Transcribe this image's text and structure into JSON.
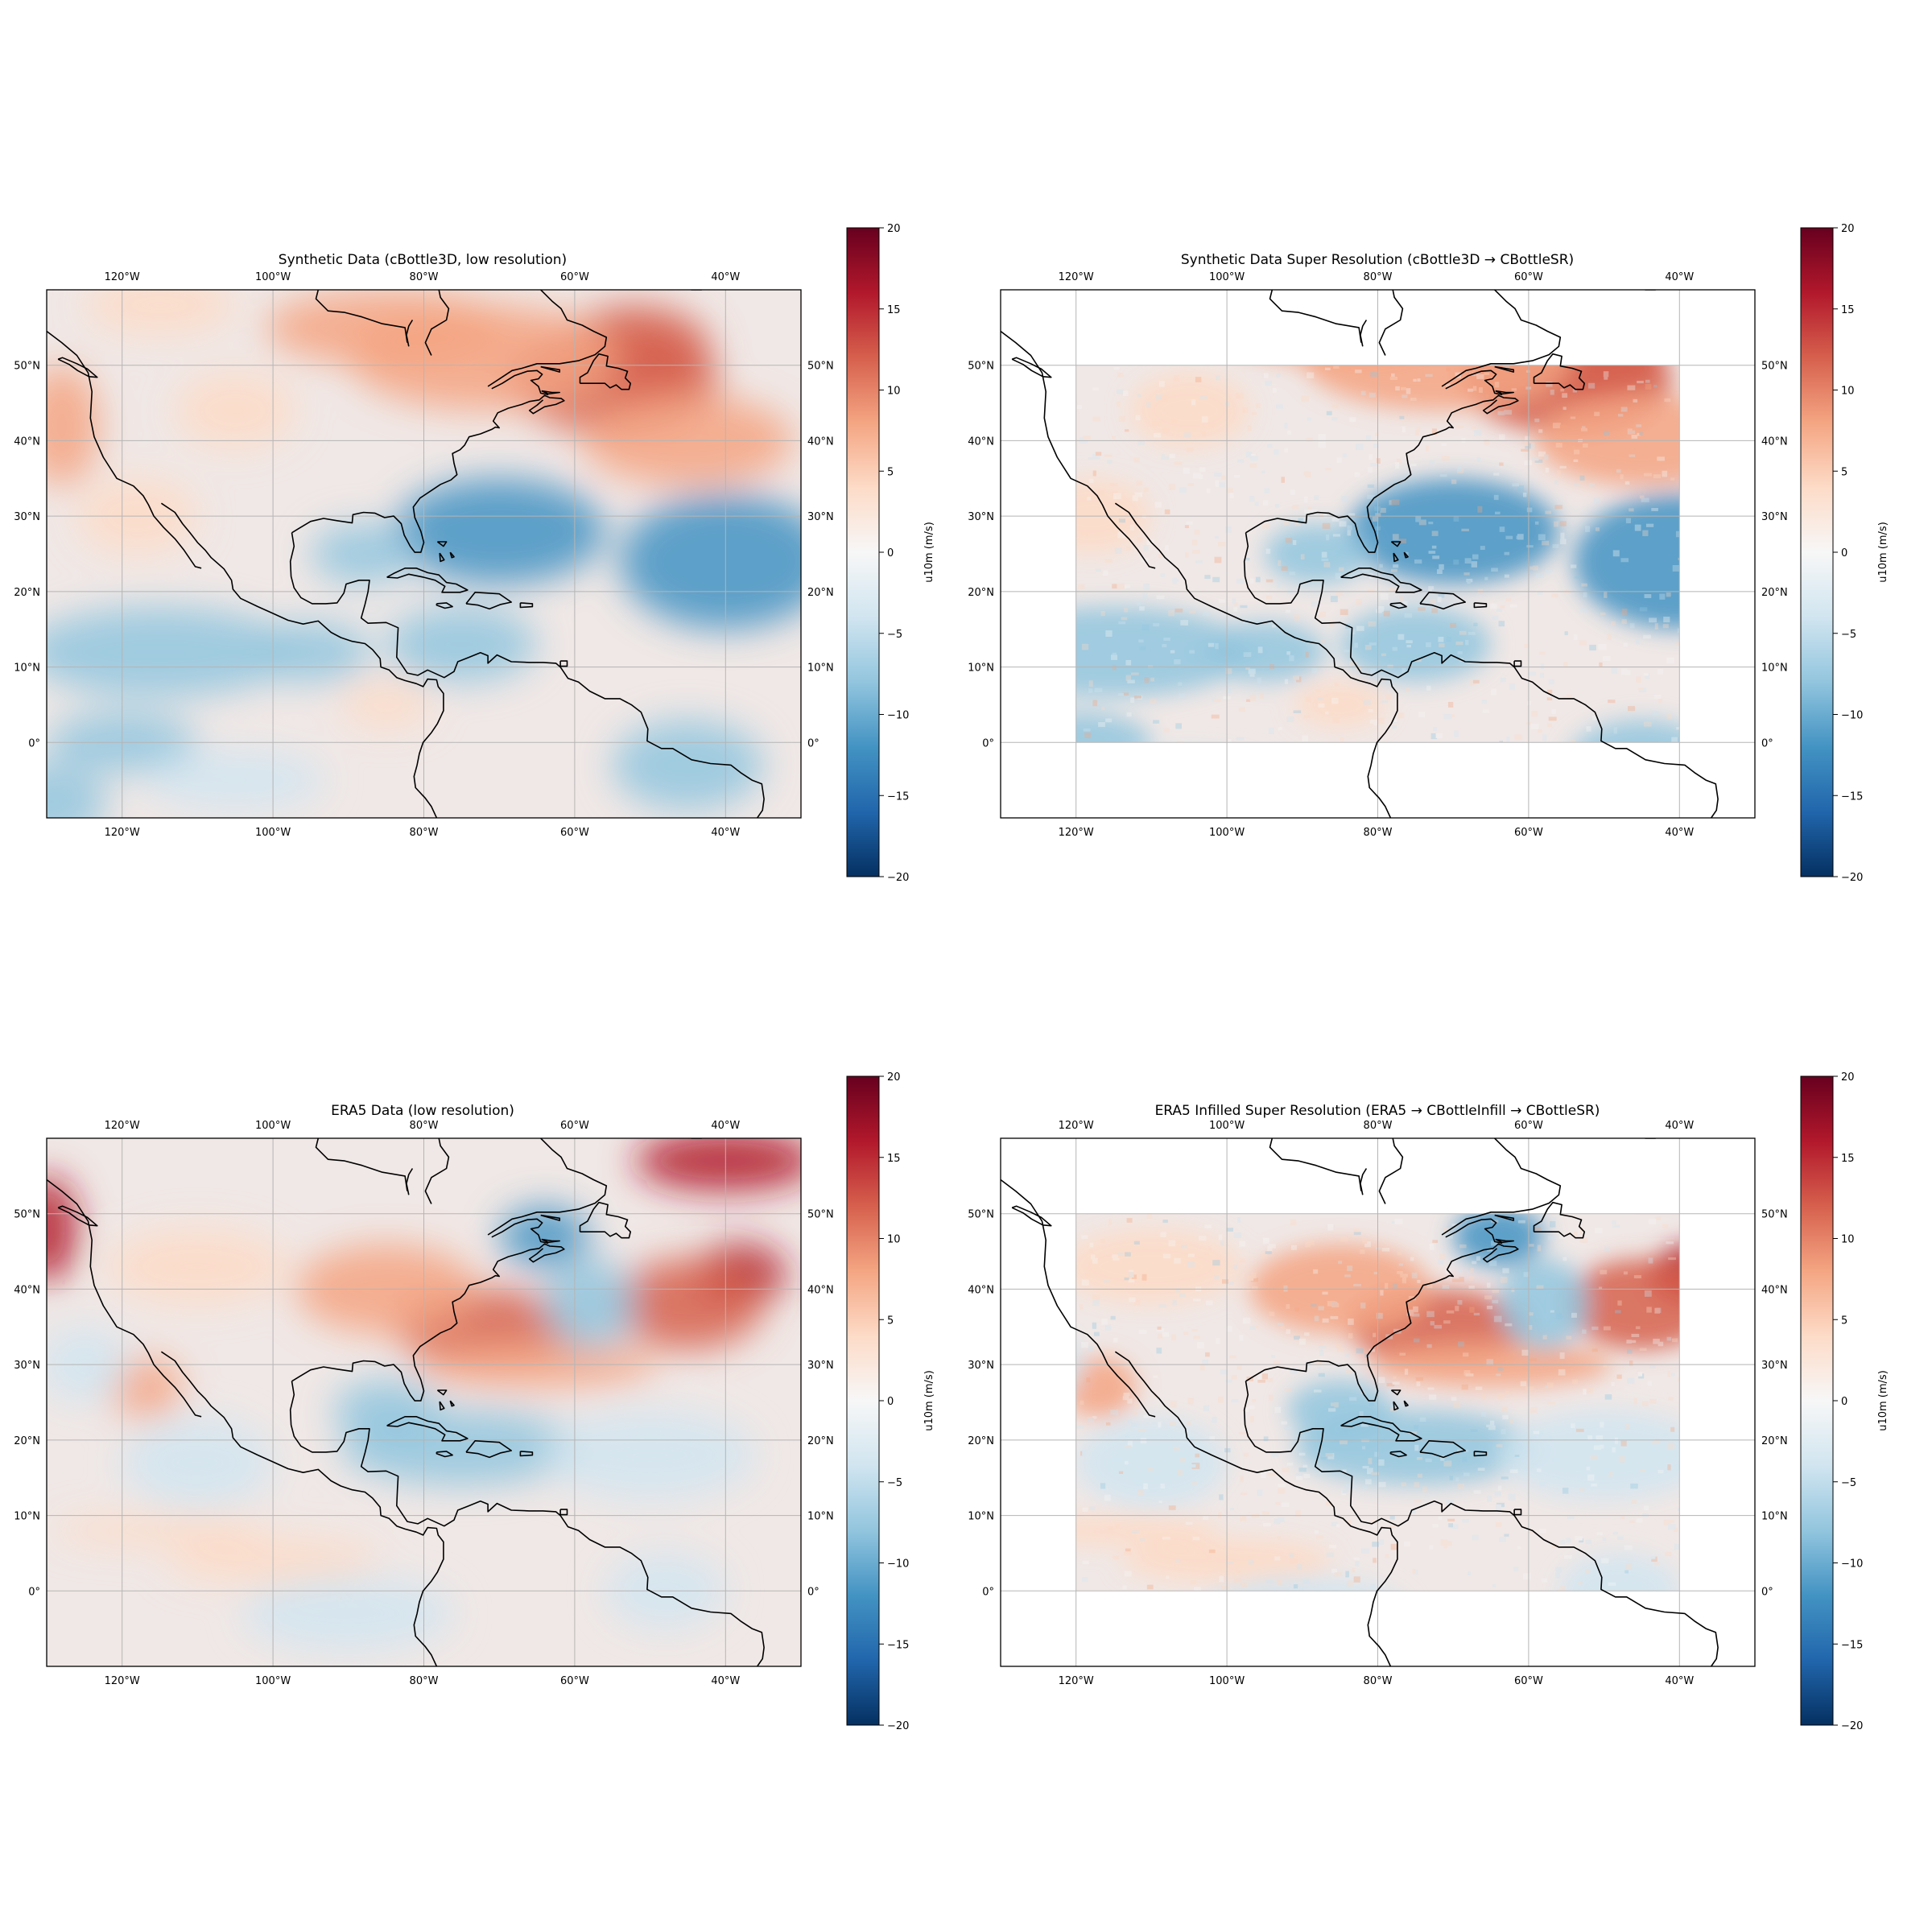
{
  "figure": {
    "colorscale": {
      "name": "RdBu_r",
      "stops": [
        "#053061",
        "#2166ac",
        "#4393c3",
        "#92c5de",
        "#d1e5f0",
        "#f7f7f7",
        "#fddbc7",
        "#f4a582",
        "#d6604d",
        "#b2182b",
        "#67001f"
      ]
    },
    "colorbar": {
      "label": "u10m (m/s)",
      "ticks": [
        "20",
        "15",
        "10",
        "5",
        "0",
        "−5",
        "−10",
        "−15",
        "−20"
      ],
      "range": [
        -20,
        20
      ]
    },
    "lon_ticks": [
      "120°W",
      "100°W",
      "80°W",
      "60°W",
      "40°W"
    ],
    "lat_ticks": [
      "50°N",
      "40°N",
      "30°N",
      "20°N",
      "10°N",
      "0°"
    ],
    "extent": {
      "lon": [
        -130,
        -30
      ],
      "lat": [
        -10,
        60
      ]
    },
    "sr_region": {
      "lon": [
        -120,
        -40
      ],
      "lat": [
        0,
        50
      ]
    },
    "panels": [
      {
        "id": "p1",
        "title": "Synthetic Data (cBottle3D, low resolution)",
        "style": "synthetic",
        "mode": "full"
      },
      {
        "id": "p2",
        "title": "Synthetic Data Super Resolution (cBottle3D → CBottleSR)",
        "style": "synthetic",
        "mode": "sr"
      },
      {
        "id": "p3",
        "title": "ERA5 Data (low resolution)",
        "style": "era5",
        "mode": "full"
      },
      {
        "id": "p4",
        "title": "ERA5 Infilled Super Resolution (ERA5 → CBottleInfill → CBottleSR)",
        "style": "era5",
        "mode": "sr"
      }
    ]
  }
}
